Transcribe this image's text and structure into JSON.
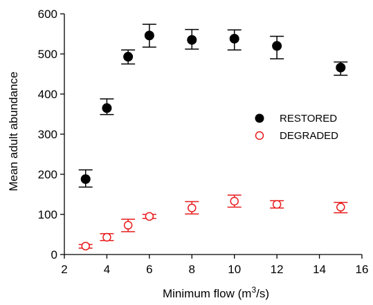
{
  "chart_data": {
    "type": "scatter",
    "xlabel": "Minimum flow (m",
    "xlabel_sup": "3",
    "xlabel_tail": "/s)",
    "ylabel": "Mean adult abundance",
    "xlim": [
      2,
      16
    ],
    "ylim": [
      0,
      600
    ],
    "xticks": [
      2,
      4,
      6,
      8,
      10,
      12,
      14,
      16
    ],
    "yticks": [
      0,
      100,
      200,
      300,
      400,
      500,
      600
    ],
    "grid": false,
    "legend_position": "right-middle",
    "error_bars": true,
    "series": [
      {
        "name": "RESTORED",
        "color": "#000000",
        "marker": "filled-circle",
        "points": [
          {
            "x": 3,
            "y": 188,
            "lo": 168,
            "hi": 211
          },
          {
            "x": 4,
            "y": 365,
            "lo": 349,
            "hi": 388
          },
          {
            "x": 5,
            "y": 493,
            "lo": 475,
            "hi": 510
          },
          {
            "x": 6,
            "y": 546,
            "lo": 517,
            "hi": 574
          },
          {
            "x": 8,
            "y": 535,
            "lo": 512,
            "hi": 561
          },
          {
            "x": 10,
            "y": 538,
            "lo": 510,
            "hi": 560
          },
          {
            "x": 12,
            "y": 520,
            "lo": 488,
            "hi": 544
          },
          {
            "x": 15,
            "y": 466,
            "lo": 447,
            "hi": 480
          }
        ]
      },
      {
        "name": "DEGRADED",
        "color": "#e8191a",
        "marker": "open-circle",
        "points": [
          {
            "x": 3,
            "y": 21,
            "lo": 16,
            "hi": 25
          },
          {
            "x": 4,
            "y": 43,
            "lo": 35,
            "hi": 52
          },
          {
            "x": 5,
            "y": 73,
            "lo": 57,
            "hi": 88
          },
          {
            "x": 6,
            "y": 95,
            "lo": 90,
            "hi": 100
          },
          {
            "x": 8,
            "y": 116,
            "lo": 101,
            "hi": 132
          },
          {
            "x": 10,
            "y": 133,
            "lo": 118,
            "hi": 148
          },
          {
            "x": 12,
            "y": 125,
            "lo": 116,
            "hi": 134
          },
          {
            "x": 15,
            "y": 118,
            "lo": 104,
            "hi": 130
          }
        ]
      }
    ]
  }
}
